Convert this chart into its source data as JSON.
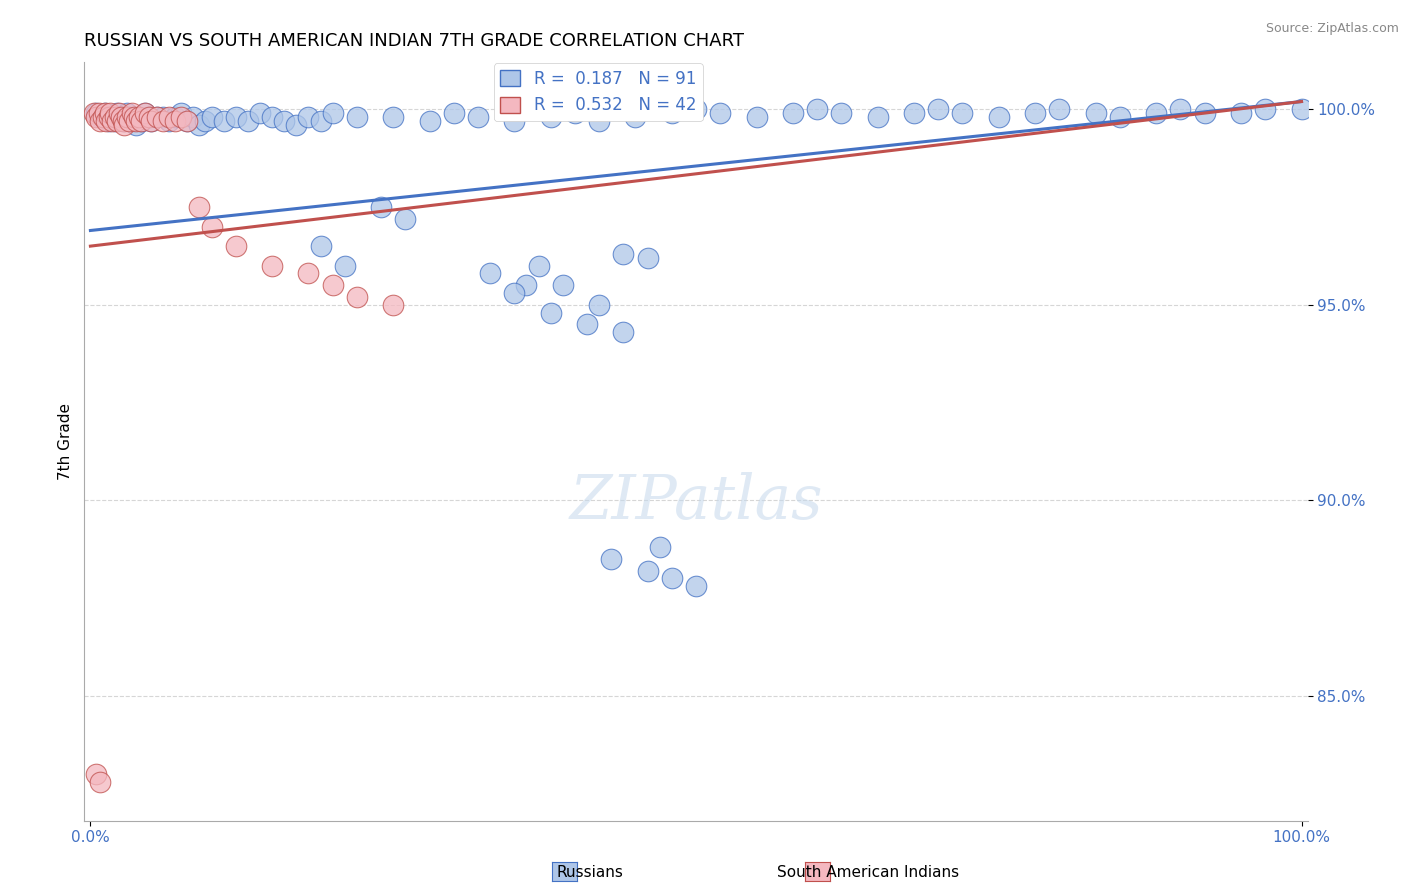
{
  "title": "RUSSIAN VS SOUTH AMERICAN INDIAN 7TH GRADE CORRELATION CHART",
  "source": "Source: ZipAtlas.com",
  "ylabel": "7th Grade",
  "blue_color": "#aec6e8",
  "pink_color": "#f4b8c0",
  "trendline_blue": "#4472c4",
  "trendline_pink": "#c0504d",
  "blue_label": "R =  0.187   N = 91",
  "pink_label": "R =  0.532   N = 42",
  "bottom_label1": "Russians",
  "bottom_label2": "South American Indians",
  "watermark": "ZIPatlas",
  "xlim": [
    0.0,
    1.0
  ],
  "ylim": [
    0.818,
    1.012
  ],
  "yticks": [
    0.85,
    0.9,
    0.95,
    1.0
  ],
  "ytick_labels": [
    "85.0%",
    "90.0%",
    "95.0%",
    "100.0%"
  ],
  "trendline_blue_start": 0.969,
  "trendline_blue_end": 1.002,
  "trendline_pink_start": 0.965,
  "trendline_pink_end": 1.002,
  "ru_x": [
    0.005,
    0.008,
    0.01,
    0.012,
    0.015,
    0.018,
    0.02,
    0.022,
    0.025,
    0.028,
    0.03,
    0.032,
    0.035,
    0.038,
    0.04,
    0.042,
    0.045,
    0.048,
    0.05,
    0.055,
    0.06,
    0.065,
    0.07,
    0.075,
    0.08,
    0.085,
    0.09,
    0.095,
    0.1,
    0.11,
    0.12,
    0.13,
    0.14,
    0.15,
    0.16,
    0.17,
    0.18,
    0.19,
    0.2,
    0.22,
    0.25,
    0.28,
    0.3,
    0.32,
    0.35,
    0.38,
    0.4,
    0.42,
    0.45,
    0.48,
    0.5,
    0.52,
    0.55,
    0.58,
    0.6,
    0.62,
    0.65,
    0.68,
    0.7,
    0.72,
    0.75,
    0.78,
    0.8,
    0.83,
    0.85,
    0.88,
    0.9,
    0.92,
    0.95,
    0.97,
    1.0,
    0.24,
    0.26,
    0.19,
    0.21,
    0.33,
    0.36,
    0.37,
    0.39,
    0.44,
    0.46,
    0.35,
    0.42,
    0.38,
    0.41,
    0.44,
    0.47,
    0.43,
    0.46,
    0.48,
    0.5
  ],
  "ru_y": [
    0.999,
    0.998,
    0.998,
    0.999,
    0.997,
    0.998,
    0.997,
    0.999,
    0.998,
    0.997,
    0.999,
    0.998,
    0.997,
    0.996,
    0.998,
    0.997,
    0.999,
    0.998,
    0.997,
    0.998,
    0.998,
    0.997,
    0.998,
    0.999,
    0.997,
    0.998,
    0.996,
    0.997,
    0.998,
    0.997,
    0.998,
    0.997,
    0.999,
    0.998,
    0.997,
    0.996,
    0.998,
    0.997,
    0.999,
    0.998,
    0.998,
    0.997,
    0.999,
    0.998,
    0.997,
    0.998,
    0.999,
    0.997,
    0.998,
    0.999,
    1.0,
    0.999,
    0.998,
    0.999,
    1.0,
    0.999,
    0.998,
    0.999,
    1.0,
    0.999,
    0.998,
    0.999,
    1.0,
    0.999,
    0.998,
    0.999,
    1.0,
    0.999,
    0.999,
    1.0,
    1.0,
    0.975,
    0.972,
    0.965,
    0.96,
    0.958,
    0.955,
    0.96,
    0.955,
    0.963,
    0.962,
    0.953,
    0.95,
    0.948,
    0.945,
    0.943,
    0.888,
    0.885,
    0.882,
    0.88,
    0.878
  ],
  "sa_x": [
    0.003,
    0.005,
    0.007,
    0.008,
    0.01,
    0.012,
    0.013,
    0.015,
    0.016,
    0.018,
    0.02,
    0.022,
    0.024,
    0.025,
    0.027,
    0.028,
    0.03,
    0.032,
    0.034,
    0.036,
    0.038,
    0.04,
    0.042,
    0.045,
    0.048,
    0.05,
    0.055,
    0.06,
    0.065,
    0.07,
    0.075,
    0.08,
    0.09,
    0.1,
    0.12,
    0.15,
    0.18,
    0.2,
    0.22,
    0.25,
    0.005,
    0.008
  ],
  "sa_y": [
    0.999,
    0.998,
    0.999,
    0.997,
    0.998,
    0.999,
    0.997,
    0.998,
    0.999,
    0.997,
    0.998,
    0.997,
    0.999,
    0.998,
    0.997,
    0.996,
    0.998,
    0.997,
    0.999,
    0.998,
    0.997,
    0.998,
    0.997,
    0.999,
    0.998,
    0.997,
    0.998,
    0.997,
    0.998,
    0.997,
    0.998,
    0.997,
    0.975,
    0.97,
    0.965,
    0.96,
    0.958,
    0.955,
    0.952,
    0.95,
    0.83,
    0.828
  ]
}
